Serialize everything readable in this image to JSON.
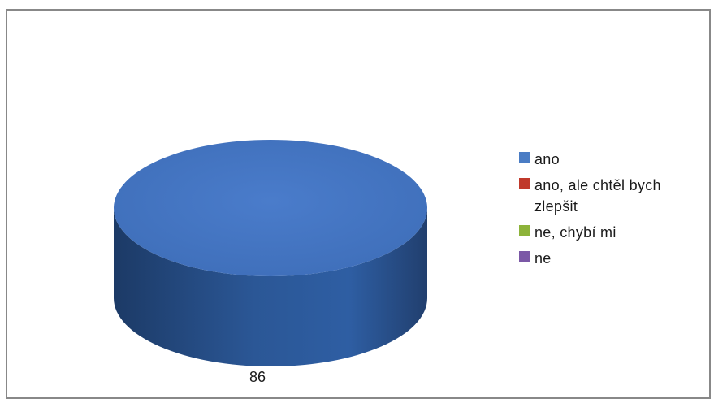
{
  "chart_data": {
    "type": "pie",
    "title": "",
    "categories": [
      "ano",
      "ano, ale chtěl bych zlepšit",
      "ne, chybí mi",
      "ne"
    ],
    "values": [
      86,
      0,
      0,
      0
    ],
    "data_labels": [
      "86"
    ],
    "colors": [
      "#4a7cc4",
      "#c0392b",
      "#8db33a",
      "#7b58a6"
    ],
    "legend_position": "right",
    "style": "3d"
  }
}
